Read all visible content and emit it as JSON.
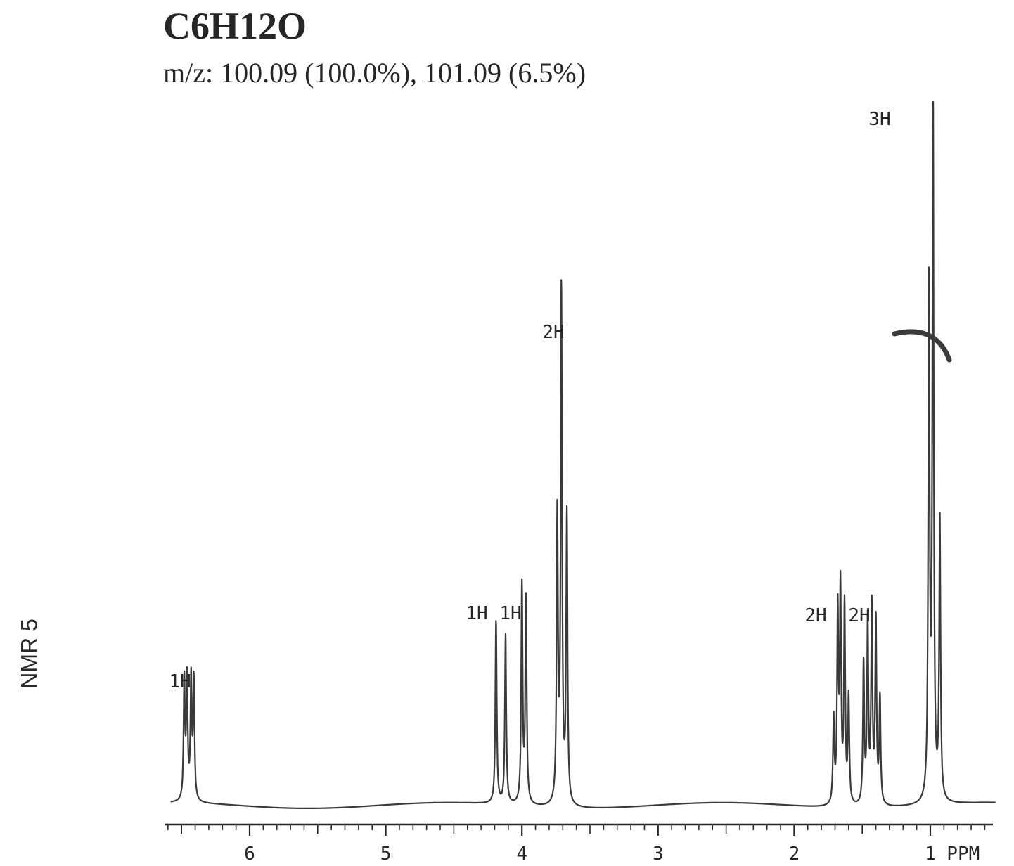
{
  "header": {
    "formula": "C6H12O",
    "mass_spec": "m/z: 100.09 (100.0%), 101.09 (6.5%)"
  },
  "side_label": "NMR 5",
  "colors": {
    "trace": "#3a3a3a",
    "ink": "#262626",
    "paper": "#ffffff"
  },
  "chart_data": {
    "type": "line",
    "title": "",
    "xlabel": "PPM",
    "ylabel": "",
    "x_axis_direction": "reversed",
    "xlim": [
      6.62,
      0.54
    ],
    "ylim": [
      0,
      1
    ],
    "major_ticks": [
      6,
      5,
      4,
      3,
      2,
      1
    ],
    "tick_labels": [
      "6",
      "5",
      "4",
      "3",
      "2",
      "1 PPM"
    ],
    "grid": false,
    "peaks": [
      {
        "center": 6.45,
        "lines": [
          6.48,
          6.46,
          6.43,
          6.41
        ],
        "heights": [
          0.17,
          0.17,
          0.17,
          0.17
        ],
        "integration": "1H"
      },
      {
        "center": 4.15,
        "lines": [
          4.19,
          4.12
        ],
        "heights": [
          0.26,
          0.24
        ],
        "integration": "1H"
      },
      {
        "center": 3.98,
        "lines": [
          4.0,
          3.97
        ],
        "heights": [
          0.31,
          0.29
        ],
        "integration": "1H"
      },
      {
        "center": 3.7,
        "lines": [
          3.74,
          3.71,
          3.67
        ],
        "heights": [
          0.41,
          0.73,
          0.41
        ],
        "integration": "2H"
      },
      {
        "center": 1.65,
        "lines": [
          1.71,
          1.68,
          1.66,
          1.63,
          1.6
        ],
        "heights": [
          0.12,
          0.27,
          0.3,
          0.28,
          0.15
        ],
        "integration": "2H"
      },
      {
        "center": 1.43,
        "lines": [
          1.49,
          1.46,
          1.43,
          1.4,
          1.37
        ],
        "heights": [
          0.2,
          0.26,
          0.28,
          0.26,
          0.15
        ],
        "integration": "2H"
      },
      {
        "center": 0.96,
        "lines": [
          1.01,
          0.98,
          0.93
        ],
        "heights": [
          0.73,
          1.0,
          0.4
        ],
        "integration": "3H"
      }
    ],
    "integration_labels": [
      "1H",
      "1H",
      "1H",
      "2H",
      "2H",
      "2H",
      "3H"
    ]
  }
}
